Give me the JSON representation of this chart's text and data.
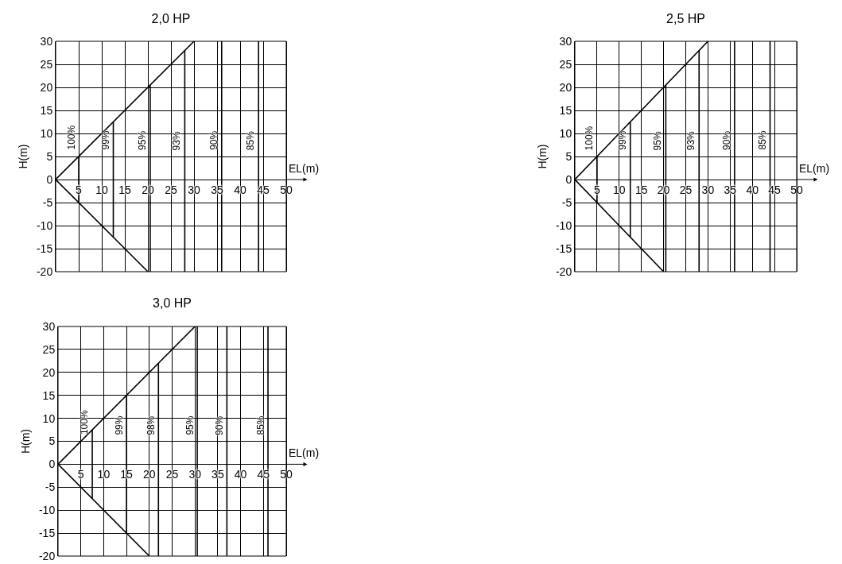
{
  "chart_data": [
    {
      "type": "line",
      "title": "2,0 HP",
      "xlabel": "EL(m)",
      "ylabel": "H(m)",
      "xlim": [
        0,
        50
      ],
      "xticks": [
        5,
        10,
        15,
        20,
        25,
        30,
        35,
        40,
        45,
        50
      ],
      "ylim": [
        -20,
        30
      ],
      "yticks": [
        -20,
        -15,
        -10,
        -5,
        0,
        5,
        10,
        15,
        20,
        25,
        30
      ],
      "grid": true,
      "legend": false,
      "marker": "none",
      "line_style": "solid",
      "series": [
        {
          "color": "#000000",
          "x": [
            0,
            30
          ],
          "values": [
            0,
            30
          ]
        },
        {
          "color": "#000000",
          "x": [
            0,
            20
          ],
          "values": [
            0,
            -20
          ]
        },
        {
          "color": "#000000",
          "x": [
            5,
            5
          ],
          "values": [
            -5,
            5
          ]
        },
        {
          "color": "#000000",
          "x": [
            12.5,
            12.5
          ],
          "values": [
            -12.5,
            12.5
          ]
        },
        {
          "color": "#000000",
          "x": [
            20.5,
            20.5
          ],
          "values": [
            -20,
            20.5
          ]
        },
        {
          "color": "#000000",
          "x": [
            28,
            28
          ],
          "values": [
            -20,
            28
          ]
        },
        {
          "color": "#000000",
          "x": [
            36,
            36
          ],
          "values": [
            -20,
            30
          ]
        },
        {
          "color": "#000000",
          "x": [
            44,
            44
          ],
          "values": [
            -20,
            30
          ]
        }
      ],
      "annotations": [
        {
          "text": "100%",
          "x": 5,
          "y": 5
        },
        {
          "text": "99%",
          "x": 12.5,
          "y": 5
        },
        {
          "text": "95%",
          "x": 20.5,
          "y": 5
        },
        {
          "text": "93%",
          "x": 28,
          "y": 5
        },
        {
          "text": "90%",
          "x": 36,
          "y": 5
        },
        {
          "text": "85%",
          "x": 44,
          "y": 5
        }
      ]
    },
    {
      "type": "line",
      "title": "2,5 HP",
      "xlabel": "EL(m)",
      "ylabel": "H(m)",
      "xlim": [
        0,
        50
      ],
      "xticks": [
        5,
        10,
        15,
        20,
        25,
        30,
        35,
        40,
        45,
        50
      ],
      "ylim": [
        -20,
        30
      ],
      "yticks": [
        -20,
        -15,
        -10,
        -5,
        0,
        5,
        10,
        15,
        20,
        25,
        30
      ],
      "grid": true,
      "legend": false,
      "marker": "none",
      "line_style": "solid",
      "series": [
        {
          "color": "#000000",
          "x": [
            0,
            30
          ],
          "values": [
            0,
            30
          ]
        },
        {
          "color": "#000000",
          "x": [
            0,
            20
          ],
          "values": [
            0,
            -20
          ]
        },
        {
          "color": "#000000",
          "x": [
            5,
            5
          ],
          "values": [
            -5,
            5
          ]
        },
        {
          "color": "#000000",
          "x": [
            12.5,
            12.5
          ],
          "values": [
            -12.5,
            12.5
          ]
        },
        {
          "color": "#000000",
          "x": [
            20.5,
            20.5
          ],
          "values": [
            -20,
            20.5
          ]
        },
        {
          "color": "#000000",
          "x": [
            28,
            28
          ],
          "values": [
            -20,
            28
          ]
        },
        {
          "color": "#000000",
          "x": [
            36,
            36
          ],
          "values": [
            -20,
            30
          ]
        },
        {
          "color": "#000000",
          "x": [
            44,
            44
          ],
          "values": [
            -20,
            30
          ]
        }
      ],
      "annotations": [
        {
          "text": "100%",
          "x": 5,
          "y": 5
        },
        {
          "text": "99%",
          "x": 12.5,
          "y": 5
        },
        {
          "text": "95%",
          "x": 20.5,
          "y": 5
        },
        {
          "text": "93%",
          "x": 28,
          "y": 5
        },
        {
          "text": "90%",
          "x": 36,
          "y": 5
        },
        {
          "text": "85%",
          "x": 44,
          "y": 5
        }
      ]
    },
    {
      "type": "line",
      "title": "3,0 HP",
      "xlabel": "EL(m)",
      "ylabel": "H(m)",
      "xlim": [
        0,
        50
      ],
      "xticks": [
        5,
        10,
        15,
        20,
        25,
        30,
        35,
        40,
        45,
        50
      ],
      "ylim": [
        -20,
        30
      ],
      "yticks": [
        -20,
        -15,
        -10,
        -5,
        0,
        5,
        10,
        15,
        20,
        25,
        30
      ],
      "grid": true,
      "legend": false,
      "marker": "none",
      "line_style": "solid",
      "series": [
        {
          "color": "#000000",
          "x": [
            0,
            30
          ],
          "values": [
            0,
            30
          ]
        },
        {
          "color": "#000000",
          "x": [
            0,
            20
          ],
          "values": [
            0,
            -20
          ]
        },
        {
          "color": "#000000",
          "x": [
            7.5,
            7.5
          ],
          "values": [
            -7.5,
            7.5
          ]
        },
        {
          "color": "#000000",
          "x": [
            15,
            15
          ],
          "values": [
            -15,
            15
          ]
        },
        {
          "color": "#000000",
          "x": [
            22,
            22
          ],
          "values": [
            -20,
            22
          ]
        },
        {
          "color": "#000000",
          "x": [
            30.5,
            30.5
          ],
          "values": [
            -20,
            30
          ]
        },
        {
          "color": "#000000",
          "x": [
            37,
            37
          ],
          "values": [
            -20,
            30
          ]
        },
        {
          "color": "#000000",
          "x": [
            46,
            46
          ],
          "values": [
            -20,
            30
          ]
        }
      ],
      "annotations": [
        {
          "text": "100%",
          "x": 7.5,
          "y": 5
        },
        {
          "text": "99%",
          "x": 15,
          "y": 5
        },
        {
          "text": "98%",
          "x": 22,
          "y": 5
        },
        {
          "text": "95%",
          "x": 30.5,
          "y": 5
        },
        {
          "text": "90%",
          "x": 37,
          "y": 5
        },
        {
          "text": "85%",
          "x": 46,
          "y": 5
        }
      ]
    }
  ]
}
